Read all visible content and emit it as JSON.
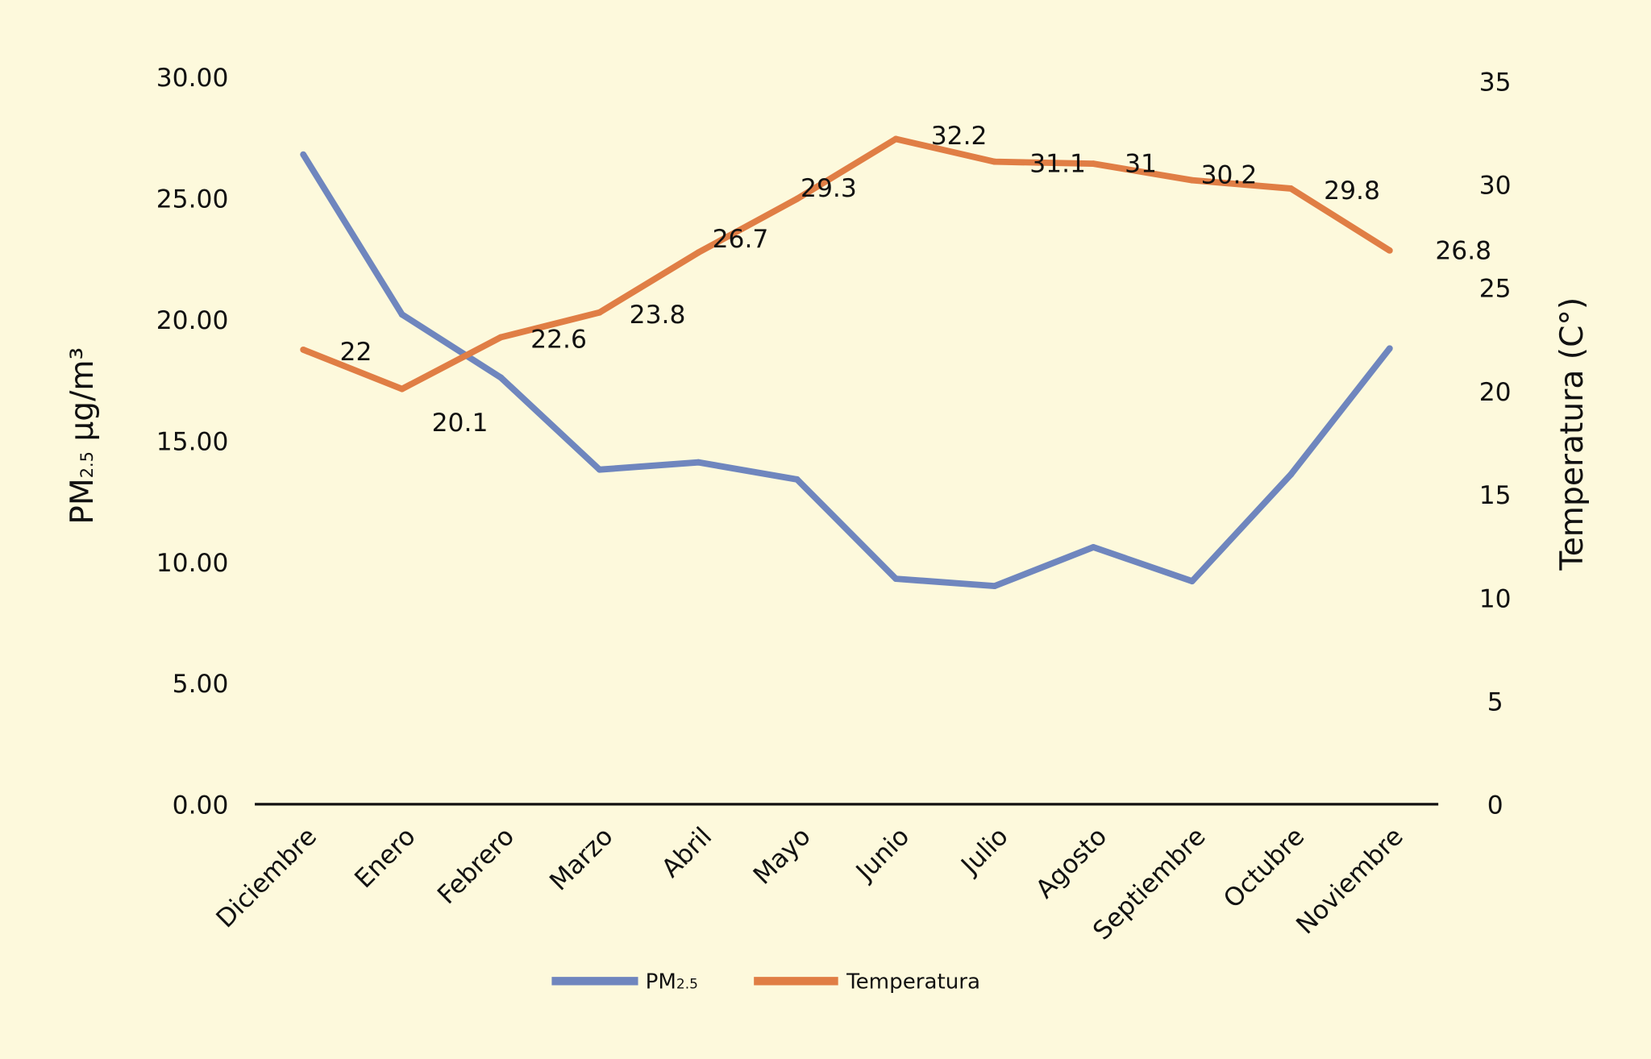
{
  "chart_data": {
    "type": "line",
    "categories": [
      "Diciembre",
      "Enero",
      "Febrero",
      "Marzo",
      "Abril",
      "Mayo",
      "Junio",
      "Julio",
      "Agosto",
      "Septiembre",
      "Octubre",
      "Noviembre"
    ],
    "series": [
      {
        "name": "PM2.5",
        "axis": "left",
        "color": "#6F86BE",
        "values": [
          26.8,
          20.2,
          17.6,
          13.8,
          14.1,
          13.4,
          9.3,
          9.0,
          10.6,
          9.2,
          13.6,
          18.8
        ]
      },
      {
        "name": "Temperatura",
        "axis": "right",
        "color": "#E07E45",
        "values": [
          22,
          20.1,
          22.6,
          23.8,
          26.7,
          29.3,
          32.2,
          31.1,
          31,
          30.2,
          29.8,
          26.8
        ],
        "data_labels": [
          "22",
          "20.1",
          "22.6",
          "23.8",
          "26.7",
          "29.3",
          "32.2",
          "31.1",
          "31",
          "30.2",
          "29.8",
          "26.8"
        ]
      }
    ],
    "y_left": {
      "label_main": "PM",
      "label_sub": "2.5",
      "label_unit": " µg/m³",
      "ylim": [
        0,
        30
      ],
      "ticks": [
        "0.00",
        "5.00",
        "10.00",
        "15.00",
        "20.00",
        "25.00",
        "30.00"
      ]
    },
    "y_right": {
      "label": "Temperatura (C°)",
      "ylim": [
        0,
        35
      ],
      "ticks": [
        "0",
        "5",
        "10",
        "15",
        "20",
        "25",
        "30",
        "35"
      ]
    },
    "legend": {
      "placement": "bottom",
      "items": [
        {
          "main": "PM",
          "sub": "2.5"
        },
        {
          "main": "Temperatura",
          "sub": ""
        }
      ]
    },
    "grid": false
  }
}
